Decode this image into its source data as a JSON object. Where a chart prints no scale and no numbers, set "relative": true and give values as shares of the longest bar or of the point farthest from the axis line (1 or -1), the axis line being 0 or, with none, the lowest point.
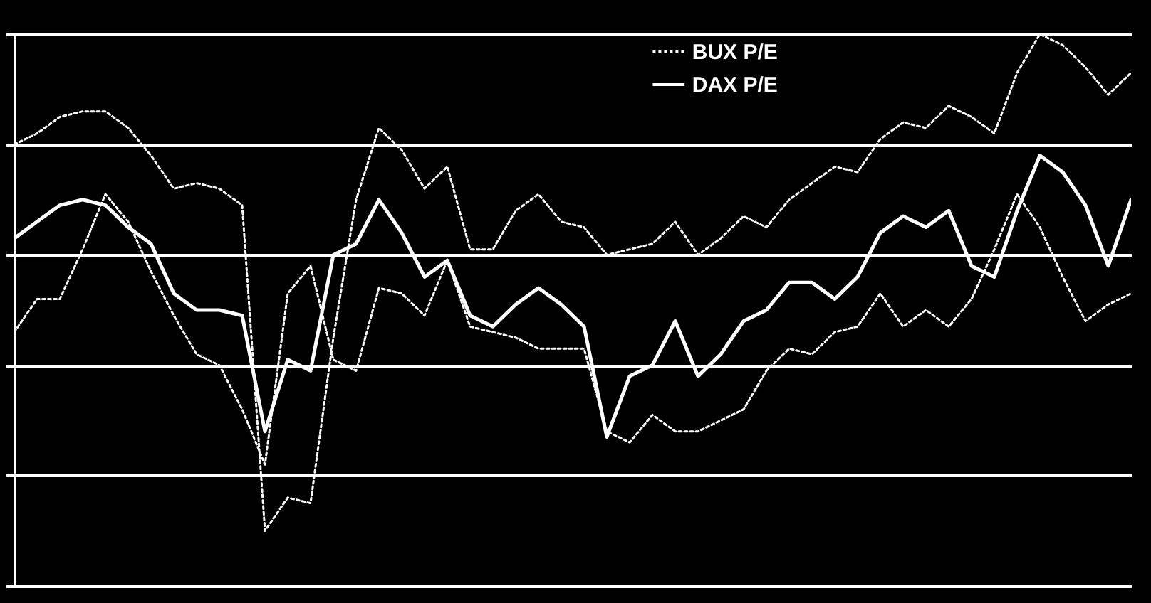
{
  "chart_data": {
    "type": "line",
    "relative": true,
    "grid": "y",
    "legend": "top",
    "categories": [
      null,
      null,
      null,
      null,
      null,
      null,
      null,
      null,
      null,
      null,
      null,
      null,
      null,
      null,
      null,
      null,
      null,
      null,
      null,
      null,
      null,
      null,
      null,
      null,
      null,
      null,
      null,
      null,
      null,
      null,
      null,
      null,
      null,
      null,
      null,
      null,
      null,
      null,
      null,
      null,
      null,
      null,
      null,
      null,
      null,
      null,
      null,
      null,
      null,
      null
    ],
    "series": [
      {
        "name": "BUX P/E",
        "color": "#ffffff",
        "line_style": "dotted",
        "values": [
          0.8,
          0.82,
          0.85,
          0.86,
          0.86,
          0.83,
          0.78,
          0.72,
          0.73,
          0.72,
          0.69,
          0.1,
          0.16,
          0.15,
          0.45,
          0.7,
          0.83,
          0.79,
          0.72,
          0.76,
          0.61,
          0.61,
          0.68,
          0.71,
          0.66,
          0.65,
          0.6,
          0.61,
          0.62,
          0.66,
          0.6,
          0.63,
          0.67,
          0.65,
          0.7,
          0.73,
          0.76,
          0.75,
          0.81,
          0.84,
          0.83,
          0.87,
          0.85,
          0.82,
          0.93,
          1.0,
          0.98,
          0.94,
          0.89,
          0.93
        ]
      },
      {
        "name": "DAX P/E",
        "color": "#ffffff",
        "line_style": "solid",
        "values": [
          0.63,
          0.66,
          0.69,
          0.7,
          0.69,
          0.65,
          0.62,
          0.53,
          0.5,
          0.5,
          0.49,
          0.28,
          0.41,
          0.39,
          0.6,
          0.62,
          0.7,
          0.64,
          0.56,
          0.59,
          0.49,
          0.47,
          0.51,
          0.54,
          0.51,
          0.47,
          0.27,
          0.38,
          0.4,
          0.48,
          0.38,
          0.42,
          0.48,
          0.5,
          0.55,
          0.55,
          0.52,
          0.56,
          0.64,
          0.67,
          0.65,
          0.68,
          0.58,
          0.56,
          0.68,
          0.78,
          0.75,
          0.69,
          0.58,
          0.7
        ]
      },
      {
        "color": "#ffffff",
        "line_style": "dotted",
        "values": [
          0.46,
          0.52,
          0.52,
          0.61,
          0.71,
          0.66,
          0.57,
          0.49,
          0.42,
          0.4,
          0.32,
          0.22,
          0.53,
          0.58,
          0.41,
          0.39,
          0.54,
          0.53,
          0.49,
          0.59,
          0.47,
          0.46,
          0.45,
          0.43,
          0.43,
          0.43,
          0.28,
          0.26,
          0.31,
          0.28,
          0.28,
          0.3,
          0.32,
          0.39,
          0.43,
          0.42,
          0.46,
          0.47,
          0.53,
          0.47,
          0.5,
          0.47,
          0.52,
          0.61,
          0.71,
          0.65,
          0.56,
          0.48,
          0.51,
          0.53
        ]
      }
    ]
  }
}
